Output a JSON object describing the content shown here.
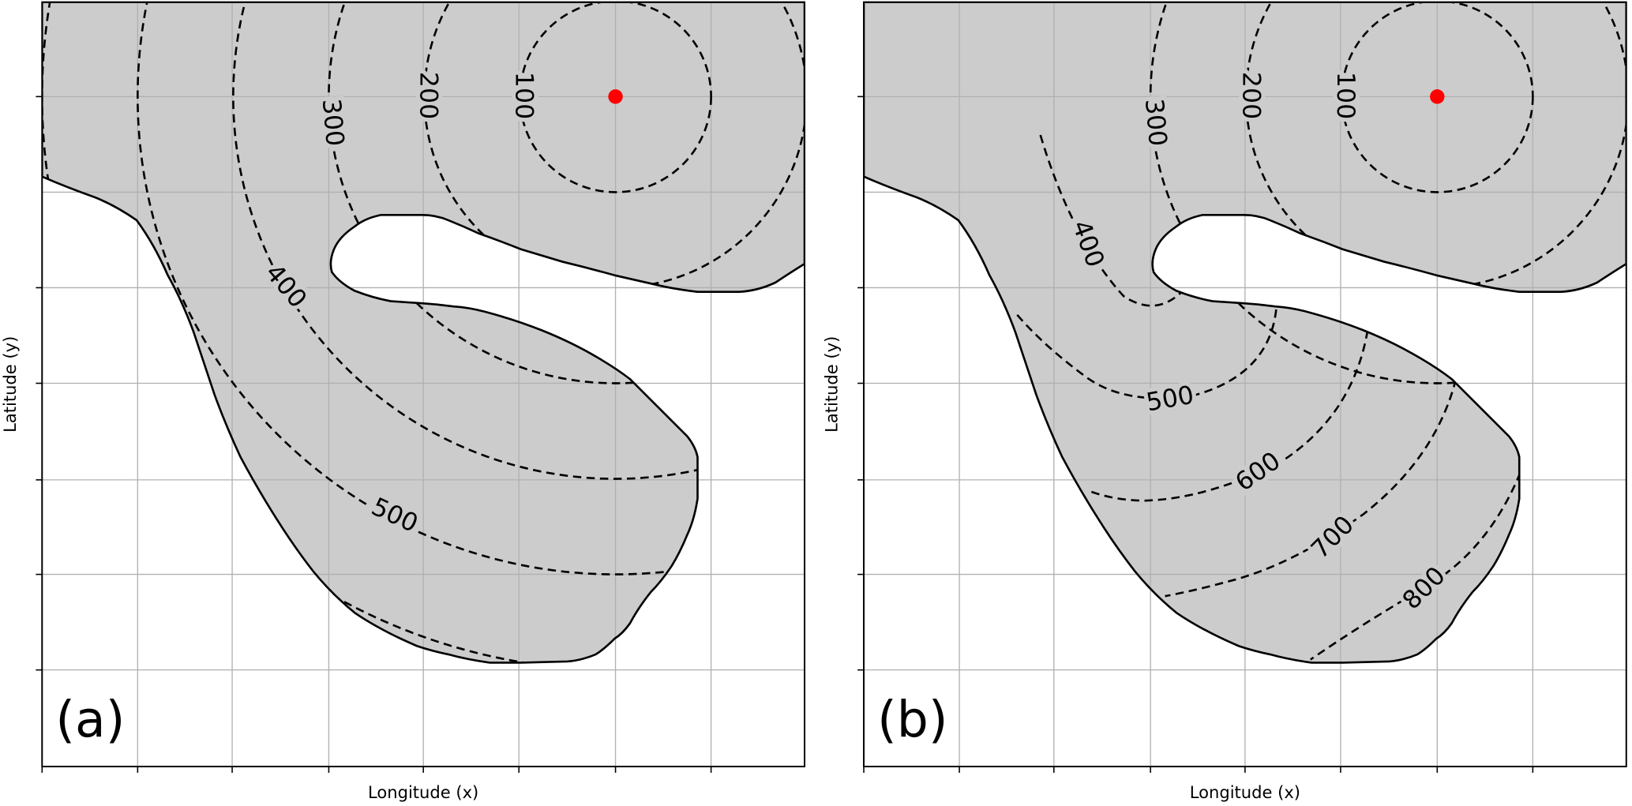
{
  "panels": [
    {
      "label": "(a)",
      "x_label": "Longitude (x)",
      "y_label": "Latitude (y)",
      "contour_labels": [
        100,
        200,
        300,
        400,
        500
      ]
    },
    {
      "label": "(b)",
      "x_label": "Longitude (x)",
      "y_label": "Latitude (y)",
      "contour_labels": [
        100,
        200,
        300,
        400,
        500,
        600,
        700,
        800
      ]
    }
  ]
}
